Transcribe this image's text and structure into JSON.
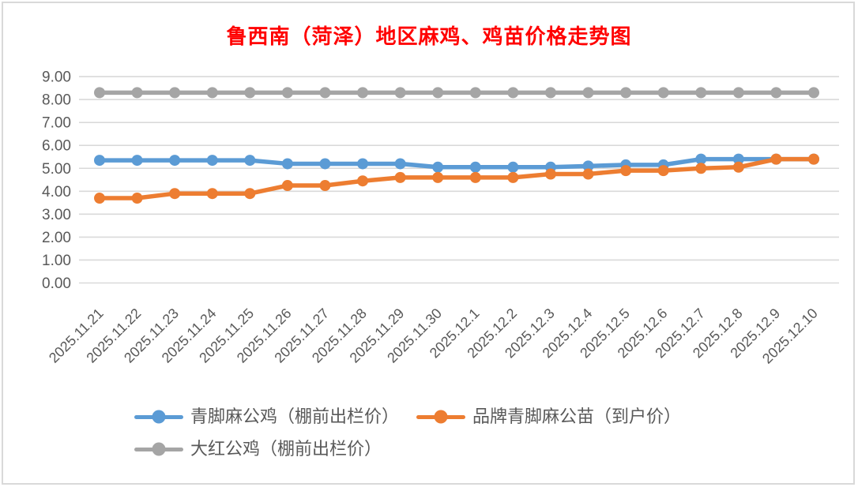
{
  "title": "鲁西南（菏泽）地区麻鸡、鸡苗价格走势图",
  "colors": {
    "title": "#ff0000",
    "axis_text": "#595959",
    "gridline": "#d9d9d9",
    "frame_border": "#d9d9d9",
    "background": "#ffffff"
  },
  "chart_data": {
    "type": "line",
    "title": "鲁西南（菏泽）地区麻鸡、鸡苗价格走势图",
    "categories": [
      "2025.11.21",
      "2025.11.22",
      "2025.11.23",
      "2025.11.24",
      "2025.11.25",
      "2025.11.26",
      "2025.11.27",
      "2025.11.28",
      "2025.11.29",
      "2025.11.30",
      "2025.12.1",
      "2025.12.2",
      "2025.12.3",
      "2025.12.4",
      "2025.12.5",
      "2025.12.6",
      "2025.12.7",
      "2025.12.8",
      "2025.12.9",
      "2025.12.10"
    ],
    "series": [
      {
        "name": "青脚麻公鸡（棚前出栏价）",
        "color": "#5b9bd5",
        "values": [
          5.35,
          5.35,
          5.35,
          5.35,
          5.35,
          5.2,
          5.2,
          5.2,
          5.2,
          5.05,
          5.05,
          5.05,
          5.05,
          5.1,
          5.15,
          5.15,
          5.4,
          5.4,
          5.4,
          5.4
        ]
      },
      {
        "name": "品牌青脚麻公苗（到户价）",
        "color": "#ed7d31",
        "values": [
          3.7,
          3.7,
          3.9,
          3.9,
          3.9,
          4.25,
          4.25,
          4.45,
          4.6,
          4.6,
          4.6,
          4.6,
          4.75,
          4.75,
          4.9,
          4.9,
          5.0,
          5.05,
          5.4,
          5.4
        ]
      },
      {
        "name": "大红公鸡（棚前出栏价）",
        "color": "#a5a5a5",
        "values": [
          8.3,
          8.3,
          8.3,
          8.3,
          8.3,
          8.3,
          8.3,
          8.3,
          8.3,
          8.3,
          8.3,
          8.3,
          8.3,
          8.3,
          8.3,
          8.3,
          8.3,
          8.3,
          8.3,
          8.3
        ]
      }
    ],
    "ylim": [
      0,
      9
    ],
    "ytick_step": 1,
    "ytick_format": "two_decimals",
    "grid": true,
    "x_label_rotation_deg": -45,
    "legend_position": "bottom-left"
  }
}
